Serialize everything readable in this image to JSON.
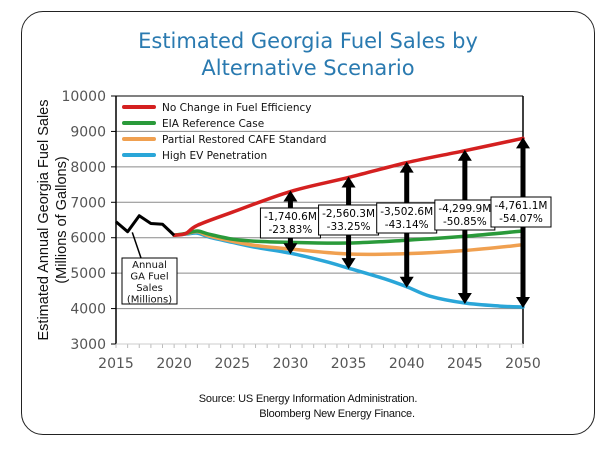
{
  "chart_data": {
    "type": "line",
    "title": "Estimated Georgia Fuel Sales by Alternative Scenario",
    "title_lines": [
      "Estimated Georgia Fuel Sales by",
      "Alternative Scenario"
    ],
    "xlabel": "",
    "ylabel_lines": [
      "Estimated Annual Georgia Fuel Sales",
      "(Millions  of Gallons)"
    ],
    "xlim": [
      2015,
      2050
    ],
    "ylim": [
      3000,
      10000
    ],
    "xticks": [
      "2015",
      "2020",
      "2025",
      "2030",
      "2035",
      "2040",
      "2045",
      "2050"
    ],
    "yticks": [
      "3000",
      "4000",
      "5000",
      "6000",
      "7000",
      "8000",
      "9000",
      "10000"
    ],
    "grid": "horizontal",
    "legend_position": "top-left",
    "historical": {
      "name": "Annual GA Fuel Sales (Millions)",
      "label_lines": [
        "Annual",
        "GA Fuel",
        "Sales",
        "(Millions)"
      ],
      "color": "#000000",
      "x": [
        2015,
        2016,
        2017,
        2018,
        2019,
        2020
      ],
      "values": [
        6450,
        6170,
        6620,
        6400,
        6380,
        6070
      ]
    },
    "series": [
      {
        "name": "No Change in Fuel Efficiency",
        "color": "#d42020",
        "x": [
          2020,
          2021,
          2022,
          2025,
          2030,
          2035,
          2040,
          2045,
          2050
        ],
        "values": [
          6070,
          6120,
          6350,
          6720,
          7304,
          7700,
          8119,
          8456,
          8805
        ]
      },
      {
        "name": "EIA Reference Case",
        "color": "#2a9a3a",
        "x": [
          2020,
          2021,
          2022,
          2023,
          2025,
          2027,
          2030,
          2035,
          2040,
          2045,
          2050
        ],
        "values": [
          6070,
          6120,
          6190,
          6100,
          5960,
          5900,
          5870,
          5850,
          5930,
          6040,
          6190
        ]
      },
      {
        "name": "Partial Restored CAFE Standard",
        "color": "#f0a050",
        "x": [
          2020,
          2021,
          2022,
          2023,
          2025,
          2027,
          2030,
          2035,
          2040,
          2045,
          2050
        ],
        "values": [
          6070,
          6110,
          6170,
          6050,
          5900,
          5780,
          5680,
          5540,
          5550,
          5640,
          5800
        ]
      },
      {
        "name": "High EV Penetration",
        "color": "#2aa6d8",
        "x": [
          2020,
          2021,
          2022,
          2023,
          2025,
          2027,
          2030,
          2033,
          2035,
          2038,
          2040,
          2042,
          2045,
          2048,
          2050
        ],
        "values": [
          6070,
          6100,
          6130,
          6020,
          5870,
          5730,
          5563,
          5330,
          5140,
          4850,
          4617,
          4350,
          4156,
          4070,
          4044
        ]
      }
    ],
    "annotations": [
      {
        "x": 2030,
        "from": 7304,
        "to": 5563,
        "label_lines": [
          "-1,740.6M",
          "-23.83%"
        ]
      },
      {
        "x": 2035,
        "from": 7700,
        "to": 5140,
        "label_lines": [
          "-2,560.3M",
          "-33.25%"
        ]
      },
      {
        "x": 2040,
        "from": 8119,
        "to": 4617,
        "label_lines": [
          "-3,502.6M",
          "-43.14%"
        ]
      },
      {
        "x": 2045,
        "from": 8456,
        "to": 4156,
        "label_lines": [
          "-4,299.9M",
          "-50.85%"
        ]
      },
      {
        "x": 2050,
        "from": 8805,
        "to": 4044,
        "label_lines": [
          "-4,761.1M",
          "-54.07%"
        ]
      }
    ]
  },
  "source": {
    "line1": "Source: US Energy Information  Administration.",
    "line2": "Bloomberg  New Energy Finance."
  }
}
